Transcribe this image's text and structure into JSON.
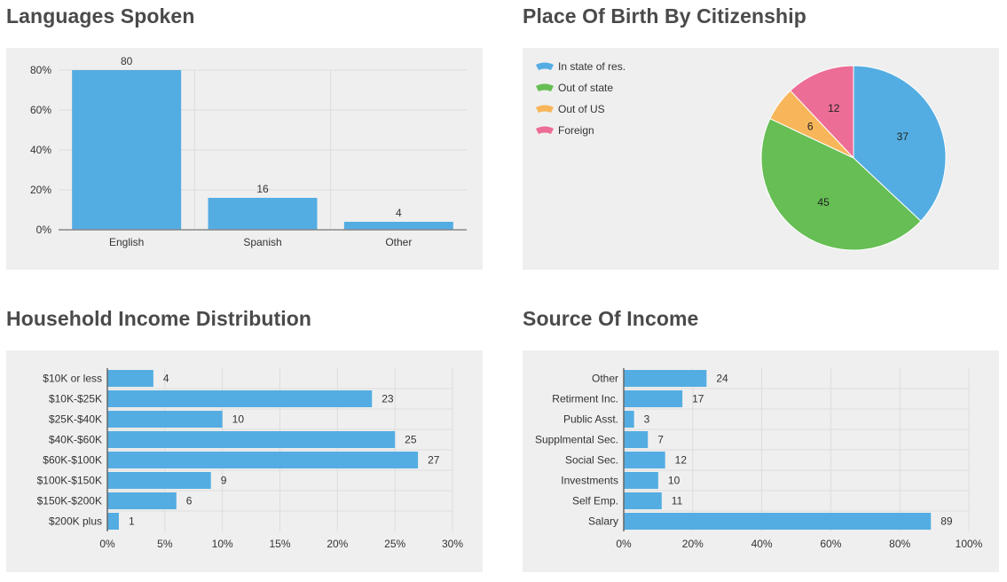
{
  "colors": {
    "bar": "#54ade2",
    "grid": "#dddddd",
    "axis": "#333333",
    "label": "#333333",
    "panel": "#efefef",
    "title": "#4a4a4a"
  },
  "chart_data": [
    {
      "id": "languages",
      "type": "bar",
      "title": "Languages Spoken",
      "categories": [
        "English",
        "Spanish",
        "Other"
      ],
      "values": [
        80,
        16,
        4
      ],
      "data_labels": [
        "80",
        "16",
        "4"
      ],
      "ylim": [
        0,
        80
      ],
      "yticks": [
        0,
        20,
        40,
        60,
        80
      ],
      "ytick_labels": [
        "0%",
        "20%",
        "40%",
        "60%",
        "80%"
      ],
      "xlabel": "",
      "ylabel": ""
    },
    {
      "id": "birthplace",
      "type": "pie",
      "title": "Place Of Birth By Citizenship",
      "legend_position": "top-left",
      "slices": [
        {
          "label": "In state of res.",
          "value": 37,
          "display": "37",
          "color": "#54ade2"
        },
        {
          "label": "Out of state",
          "value": 45,
          "display": "45",
          "color": "#66be54"
        },
        {
          "label": "Out of US",
          "value": 6,
          "display": "6",
          "color": "#f8b65a"
        },
        {
          "label": "Foreign",
          "value": 12,
          "display": "12",
          "color": "#ec6d95"
        }
      ]
    },
    {
      "id": "household_income",
      "type": "bar",
      "orientation": "horizontal",
      "title": "Household Income Distribution",
      "categories": [
        "$10K or less",
        "$10K-$25K",
        "$25K-$40K",
        "$40K-$60K",
        "$60K-$100K",
        "$100K-$150K",
        "$150K-$200K",
        "$200K plus"
      ],
      "values": [
        4,
        23,
        10,
        25,
        27,
        9,
        6,
        1
      ],
      "data_labels": [
        "4",
        "23",
        "10",
        "25",
        "27",
        "9",
        "6",
        "1"
      ],
      "xlim": [
        0,
        30
      ],
      "xticks": [
        0,
        5,
        10,
        15,
        20,
        25,
        30
      ],
      "xtick_labels": [
        "0%",
        "5%",
        "10%",
        "15%",
        "20%",
        "25%",
        "30%"
      ]
    },
    {
      "id": "income_source",
      "type": "bar",
      "orientation": "horizontal",
      "title": "Source Of Income",
      "categories": [
        "Other",
        "Retirment Inc.",
        "Public Asst.",
        "Supplmental Sec.",
        "Social Sec.",
        "Investments",
        "Self Emp.",
        "Salary"
      ],
      "values": [
        24,
        17,
        3,
        7,
        12,
        10,
        11,
        89
      ],
      "data_labels": [
        "24",
        "17",
        "3",
        "7",
        "12",
        "10",
        "11",
        "89"
      ],
      "xlim": [
        0,
        100
      ],
      "xticks": [
        0,
        20,
        40,
        60,
        80,
        100
      ],
      "xtick_labels": [
        "0%",
        "20%",
        "40%",
        "60%",
        "80%",
        "100%"
      ]
    }
  ]
}
